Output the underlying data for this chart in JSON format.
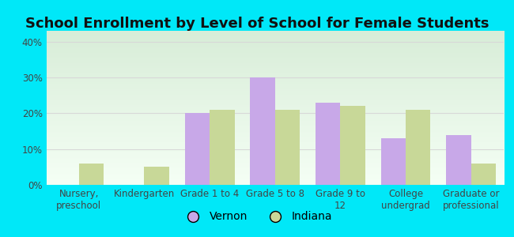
{
  "title": "School Enrollment by Level of School for Female Students",
  "categories": [
    "Nursery,\npreschool",
    "Kindergarten",
    "Grade 1 to 4",
    "Grade 5 to 8",
    "Grade 9 to\n12",
    "College\nundergrad",
    "Graduate or\nprofessional"
  ],
  "vernon": [
    0,
    0,
    20,
    30,
    23,
    13,
    14
  ],
  "indiana": [
    6,
    5,
    21,
    21,
    22,
    21,
    6
  ],
  "vernon_color": "#c8a8e8",
  "indiana_color": "#c8d898",
  "background_outer": "#00e8f8",
  "yticks": [
    0,
    10,
    20,
    30,
    40
  ],
  "ylim": [
    0,
    43
  ],
  "title_fontsize": 13,
  "tick_fontsize": 8.5,
  "legend_labels": [
    "Vernon",
    "Indiana"
  ],
  "bar_width": 0.38,
  "grid_color": "#d8d8d8",
  "inner_bg_top": "#d8edd8",
  "inner_bg_bottom": "#f5fff5",
  "title_color": "#111111"
}
